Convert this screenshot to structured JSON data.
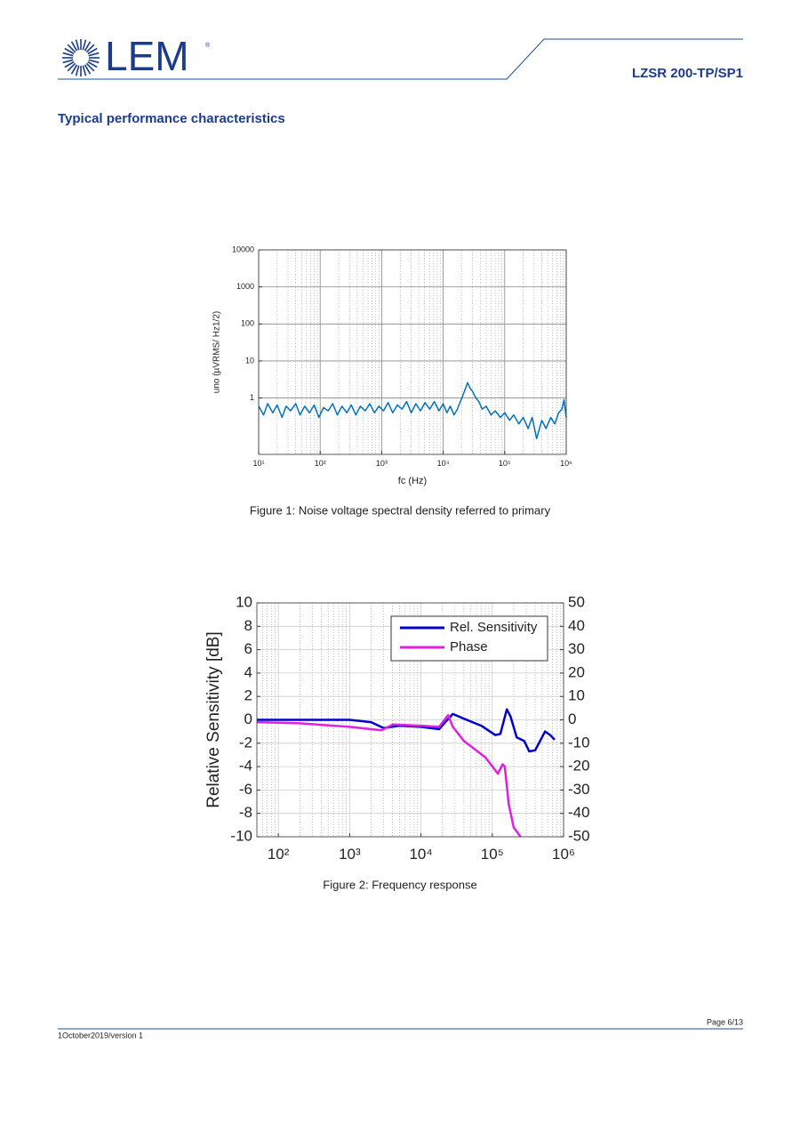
{
  "header": {
    "logo": "LEM",
    "logo_mark": "®",
    "product": "LZSR 200-TP/SP1"
  },
  "heading": "Typical performance characteristics",
  "chart_data": [
    {
      "type": "line",
      "xscale": "log",
      "yscale": "log",
      "grid": true,
      "xlabel": "fc (Hz)",
      "ylabel": "uno  (µVRMS/ Hz1/2)",
      "caption": "Figure 1: Noise voltage spectral density referred to primary",
      "xlim": [
        10,
        1000000
      ],
      "ylim": [
        0.03,
        10000
      ],
      "xticks": [
        {
          "value": 10,
          "label": "10¹"
        },
        {
          "value": 100,
          "label": "10²"
        },
        {
          "value": 1000,
          "label": "10³"
        },
        {
          "value": 10000,
          "label": "10⁴"
        },
        {
          "value": 100000,
          "label": "10⁵"
        },
        {
          "value": 1000000,
          "label": "10⁶"
        }
      ],
      "yticks": [
        1,
        10,
        100,
        1000,
        10000
      ],
      "series": [
        {
          "color": "#0072bd",
          "x": [
            10,
            12,
            14,
            17,
            20,
            24,
            28,
            33,
            40,
            47,
            56,
            67,
            80,
            95,
            113,
            135,
            160,
            190,
            226,
            270,
            320,
            380,
            450,
            540,
            640,
            760,
            900,
            1070,
            1270,
            1510,
            1800,
            2140,
            2540,
            3020,
            3590,
            4270,
            5080,
            6040,
            7180,
            8530,
            10000,
            11500,
            13000,
            15000,
            17000,
            19000,
            21000,
            23000,
            25000,
            27000,
            30000,
            34000,
            38000,
            43000,
            50000,
            60000,
            70000,
            85000,
            100000,
            120000,
            140000,
            170000,
            200000,
            240000,
            280000,
            330000,
            400000,
            470000,
            560000,
            650000,
            750000,
            850000,
            920000,
            1000000
          ],
          "values": [
            0.6,
            0.35,
            0.7,
            0.4,
            0.65,
            0.3,
            0.6,
            0.45,
            0.7,
            0.35,
            0.6,
            0.4,
            0.65,
            0.3,
            0.55,
            0.45,
            0.7,
            0.35,
            0.6,
            0.4,
            0.65,
            0.35,
            0.6,
            0.45,
            0.7,
            0.4,
            0.6,
            0.45,
            0.75,
            0.4,
            0.65,
            0.5,
            0.8,
            0.4,
            0.7,
            0.45,
            0.75,
            0.5,
            0.8,
            0.45,
            0.7,
            0.4,
            0.6,
            0.35,
            0.5,
            0.8,
            1.2,
            1.8,
            2.6,
            1.9,
            1.5,
            1.0,
            0.8,
            0.5,
            0.6,
            0.35,
            0.45,
            0.3,
            0.4,
            0.25,
            0.35,
            0.2,
            0.3,
            0.15,
            0.3,
            0.08,
            0.25,
            0.15,
            0.3,
            0.2,
            0.4,
            0.5,
            0.9,
            0.3
          ]
        }
      ]
    },
    {
      "type": "line",
      "xscale": "log",
      "grid": true,
      "legend": "upper right",
      "ylabel": "Relative Sensitivity [dB]",
      "caption": "Figure 2: Frequency response",
      "xlim": [
        50,
        1000000
      ],
      "ylim": [
        -10,
        10
      ],
      "y2lim": [
        -50,
        50
      ],
      "xticks": [
        {
          "value": 100,
          "label": "10²"
        },
        {
          "value": 1000,
          "label": "10³"
        },
        {
          "value": 10000,
          "label": "10⁴"
        },
        {
          "value": 100000,
          "label": "10⁵"
        },
        {
          "value": 1000000,
          "label": "10⁶"
        }
      ],
      "yticks": [
        -10,
        -8,
        -6,
        -4,
        -2,
        0,
        2,
        4,
        6,
        8,
        10
      ],
      "y2ticks": [
        -50,
        -40,
        -30,
        -20,
        -10,
        0,
        10,
        20,
        30,
        40,
        50
      ],
      "series": [
        {
          "name": "Rel. Sensitivity",
          "color": "#0000cc",
          "x": [
            50,
            100,
            1000,
            2000,
            3000,
            5000,
            10000,
            18000,
            22000,
            28000,
            40000,
            70000,
            110000,
            130000,
            160000,
            180000,
            220000,
            280000,
            330000,
            400000,
            550000,
            650000,
            750000
          ],
          "values": [
            0,
            0,
            0,
            -0.2,
            -0.7,
            -0.5,
            -0.6,
            -0.8,
            -0.2,
            0.5,
            0.1,
            -0.5,
            -1.3,
            -1.2,
            0.9,
            0.3,
            -1.5,
            -1.8,
            -2.7,
            -2.6,
            -1.0,
            -1.3,
            -1.7
          ]
        },
        {
          "name": "Phase",
          "color": "#e020e0",
          "axis": "y2",
          "x": [
            50,
            200,
            1000,
            2800,
            4000,
            10000,
            18000,
            24000,
            28000,
            40000,
            80000,
            120000,
            140000,
            150000,
            170000,
            200000,
            250000
          ],
          "values": [
            -1,
            -1.5,
            -3,
            -4.5,
            -2,
            -2.5,
            -3,
            2,
            -3,
            -9,
            -16,
            -23,
            -19,
            -20,
            -36,
            -46,
            -50
          ]
        }
      ]
    }
  ],
  "footer": {
    "page": "Page 6/13",
    "date": "1October2019/version 1"
  }
}
